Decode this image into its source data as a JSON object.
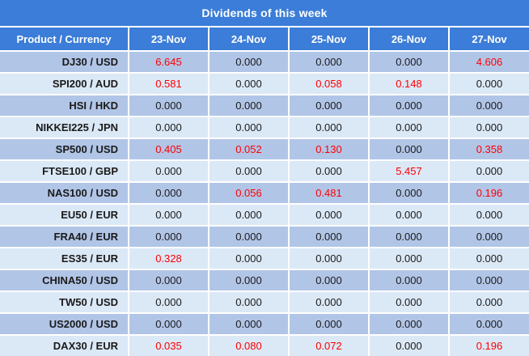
{
  "title": "Dividends of this week",
  "columns": [
    "Product / Currency",
    "23-Nov",
    "24-Nov",
    "25-Nov",
    "26-Nov",
    "27-Nov"
  ],
  "rows": [
    {
      "product": "DJ30 / USD",
      "values": [
        "6.645",
        "0.000",
        "0.000",
        "0.000",
        "4.606"
      ]
    },
    {
      "product": "SPI200 / AUD",
      "values": [
        "0.581",
        "0.000",
        "0.058",
        "0.148",
        "0.000"
      ]
    },
    {
      "product": "HSI / HKD",
      "values": [
        "0.000",
        "0.000",
        "0.000",
        "0.000",
        "0.000"
      ]
    },
    {
      "product": "NIKKEI225 / JPN",
      "values": [
        "0.000",
        "0.000",
        "0.000",
        "0.000",
        "0.000"
      ]
    },
    {
      "product": "SP500 / USD",
      "values": [
        "0.405",
        "0.052",
        "0.130",
        "0.000",
        "0.358"
      ]
    },
    {
      "product": "FTSE100 / GBP",
      "values": [
        "0.000",
        "0.000",
        "0.000",
        "5.457",
        "0.000"
      ]
    },
    {
      "product": "NAS100 / USD",
      "values": [
        "0.000",
        "0.056",
        "0.481",
        "0.000",
        "0.196"
      ]
    },
    {
      "product": "EU50 / EUR",
      "values": [
        "0.000",
        "0.000",
        "0.000",
        "0.000",
        "0.000"
      ]
    },
    {
      "product": "FRA40 / EUR",
      "values": [
        "0.000",
        "0.000",
        "0.000",
        "0.000",
        "0.000"
      ]
    },
    {
      "product": "ES35 / EUR",
      "values": [
        "0.328",
        "0.000",
        "0.000",
        "0.000",
        "0.000"
      ]
    },
    {
      "product": "CHINA50 / USD",
      "values": [
        "0.000",
        "0.000",
        "0.000",
        "0.000",
        "0.000"
      ]
    },
    {
      "product": "TW50 / USD",
      "values": [
        "0.000",
        "0.000",
        "0.000",
        "0.000",
        "0.000"
      ]
    },
    {
      "product": "US2000 / USD",
      "values": [
        "0.000",
        "0.000",
        "0.000",
        "0.000",
        "0.000"
      ]
    },
    {
      "product": "DAX30 / EUR",
      "values": [
        "0.035",
        "0.080",
        "0.072",
        "0.000",
        "0.196"
      ]
    }
  ],
  "colors": {
    "header_blue": "#3B7DD8",
    "row_dark": "#B1C5E7",
    "row_light": "#DBE8F6",
    "header_text": "#FFFFFF",
    "value_normal": "#1A1A1A",
    "value_highlight": "#FF0000",
    "separator": "#FFFFFF"
  }
}
